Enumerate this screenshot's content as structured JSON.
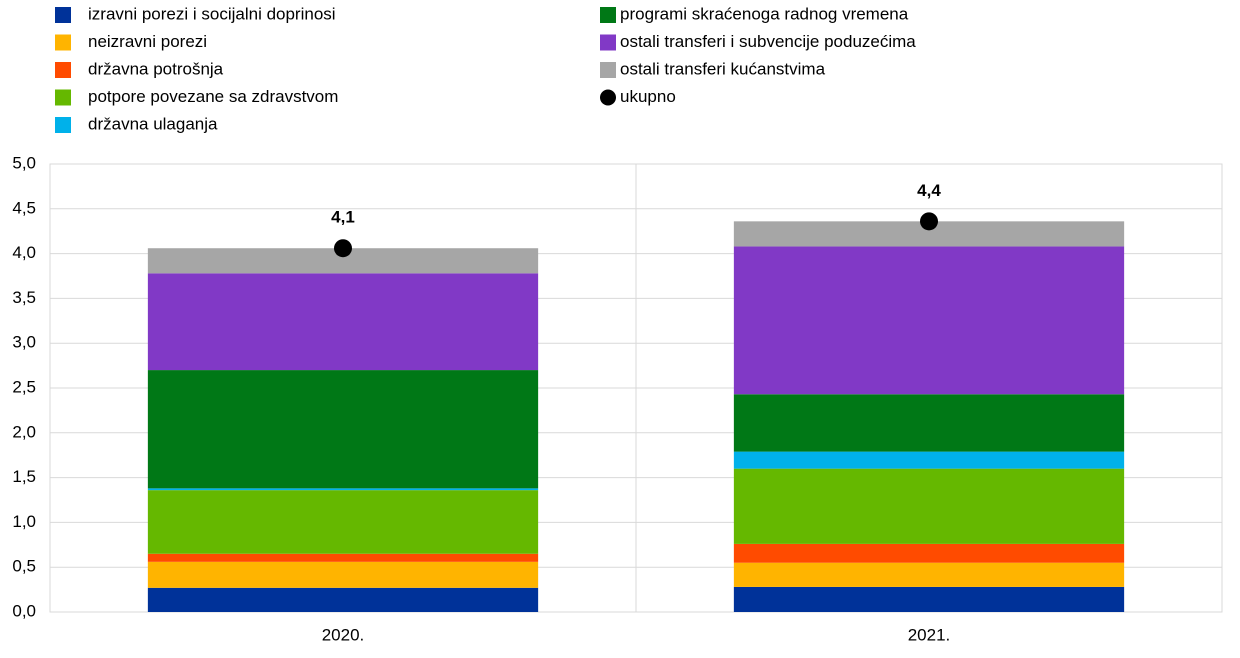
{
  "chart_data": {
    "type": "stacked-bar",
    "categories": [
      "2020.",
      "2021."
    ],
    "series": [
      {
        "name": "izravni porezi i socijalni doprinosi",
        "color": "#003299",
        "values": [
          0.27,
          0.28
        ]
      },
      {
        "name": "neizravni porezi",
        "color": "#ffb400",
        "values": [
          0.29,
          0.27
        ]
      },
      {
        "name": "državna potrošnja",
        "color": "#ff4b00",
        "values": [
          0.09,
          0.21
        ]
      },
      {
        "name": "potpore povezane sa zdravstvom",
        "color": "#65b800",
        "values": [
          0.71,
          0.84
        ]
      },
      {
        "name": "državna ulaganja",
        "color": "#00b1ea",
        "values": [
          0.02,
          0.19
        ]
      },
      {
        "name": "programi skraćenoga radnog vremena",
        "color": "#007816",
        "values": [
          1.32,
          0.64
        ]
      },
      {
        "name": "ostali transferi i subvencije poduzećima",
        "color": "#8139c6",
        "values": [
          1.08,
          1.65
        ]
      },
      {
        "name": "ostali transferi kućanstvima",
        "color": "#a6a6a6",
        "values": [
          0.28,
          0.28
        ]
      }
    ],
    "total": {
      "name": "ukupno",
      "color": "#000000",
      "values": [
        4.06,
        4.36
      ],
      "value_labels": [
        "4,1",
        "4,4"
      ]
    },
    "ylim": [
      0,
      5
    ],
    "yticks": [
      {
        "value": 0,
        "label": "0,0"
      },
      {
        "value": 0.5,
        "label": "0,5"
      },
      {
        "value": 1,
        "label": "1,0"
      },
      {
        "value": 1.5,
        "label": "1,5"
      },
      {
        "value": 2,
        "label": "2,0"
      },
      {
        "value": 2.5,
        "label": "2,5"
      },
      {
        "value": 3,
        "label": "3,0"
      },
      {
        "value": 3.5,
        "label": "3,5"
      },
      {
        "value": 4,
        "label": "4,0"
      },
      {
        "value": 4.5,
        "label": "4,5"
      },
      {
        "value": 5,
        "label": "5,0"
      }
    ],
    "grid": true
  }
}
